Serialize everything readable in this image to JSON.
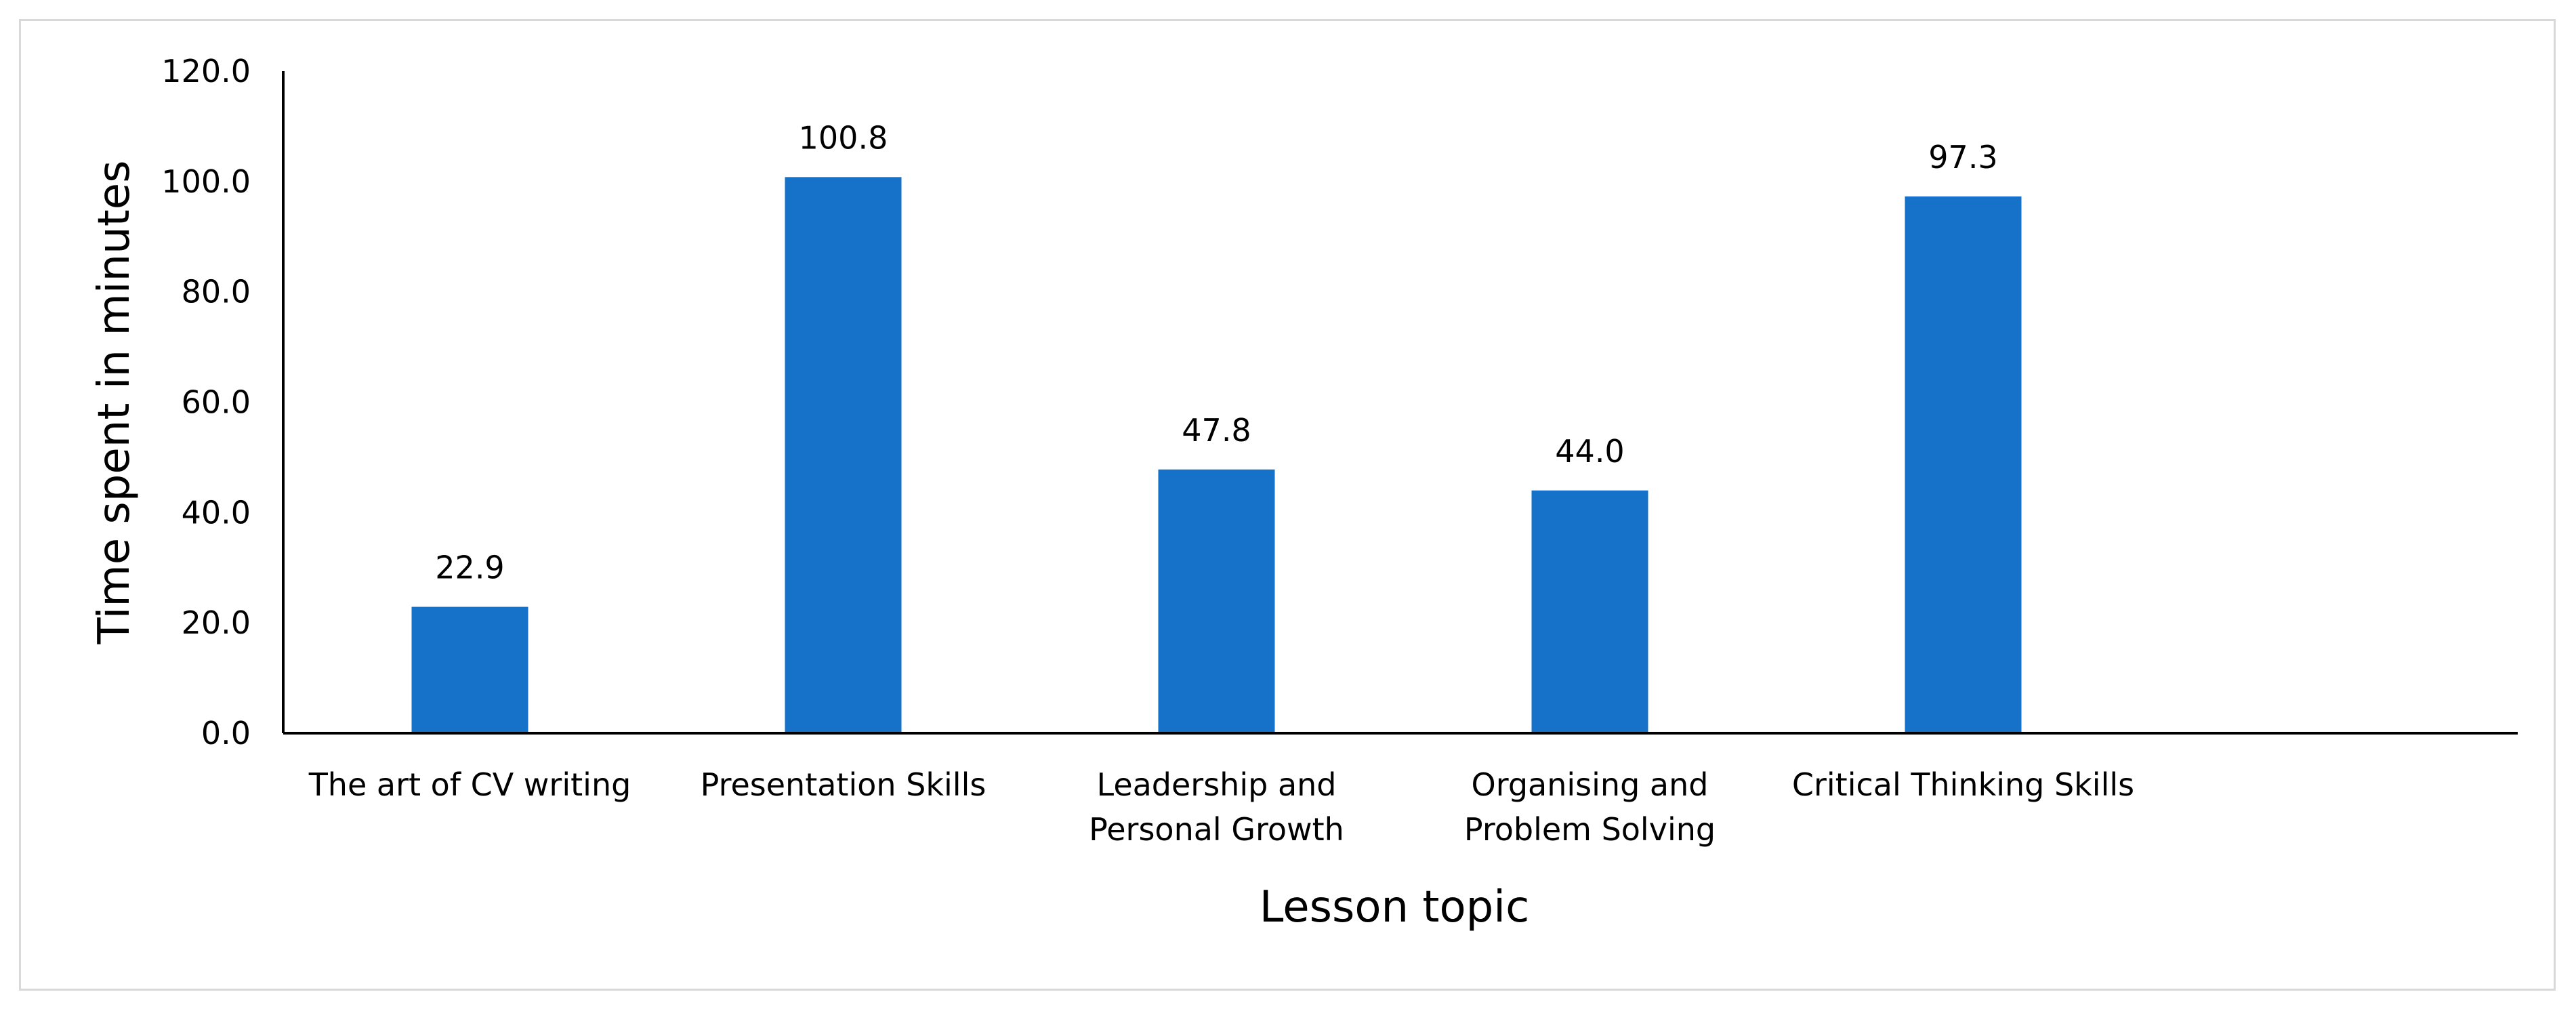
{
  "chart_data": {
    "type": "bar",
    "categories": [
      "The art of CV writing",
      "Presentation Skills",
      "Leadership and Personal Growth",
      "Organising and Problem Solving",
      "Critical Thinking Skills"
    ],
    "category_lines": [
      [
        "The art of CV writing"
      ],
      [
        "Presentation Skills"
      ],
      [
        "Leadership and",
        "Personal Growth"
      ],
      [
        "Organising and",
        "Problem Solving"
      ],
      [
        "Critical Thinking Skills"
      ]
    ],
    "values": [
      22.9,
      100.8,
      47.8,
      44.0,
      97.3
    ],
    "data_labels": [
      "22.9",
      "100.8",
      "47.8",
      "44.0",
      "97.3"
    ],
    "xlabel": "Lesson topic",
    "ylabel": "Time spent in minutes",
    "ylim": [
      0,
      120
    ],
    "yticks": [
      0,
      20,
      40,
      60,
      80,
      100,
      120
    ],
    "ytick_labels": [
      "0.0",
      "20.0",
      "40.0",
      "60.0",
      "80.0",
      "100.0",
      "120.0"
    ],
    "grid": false,
    "legend": "none",
    "bar_color": "#1572C8",
    "axis_color": "#000000",
    "frame_color": "#D9D9D9"
  }
}
